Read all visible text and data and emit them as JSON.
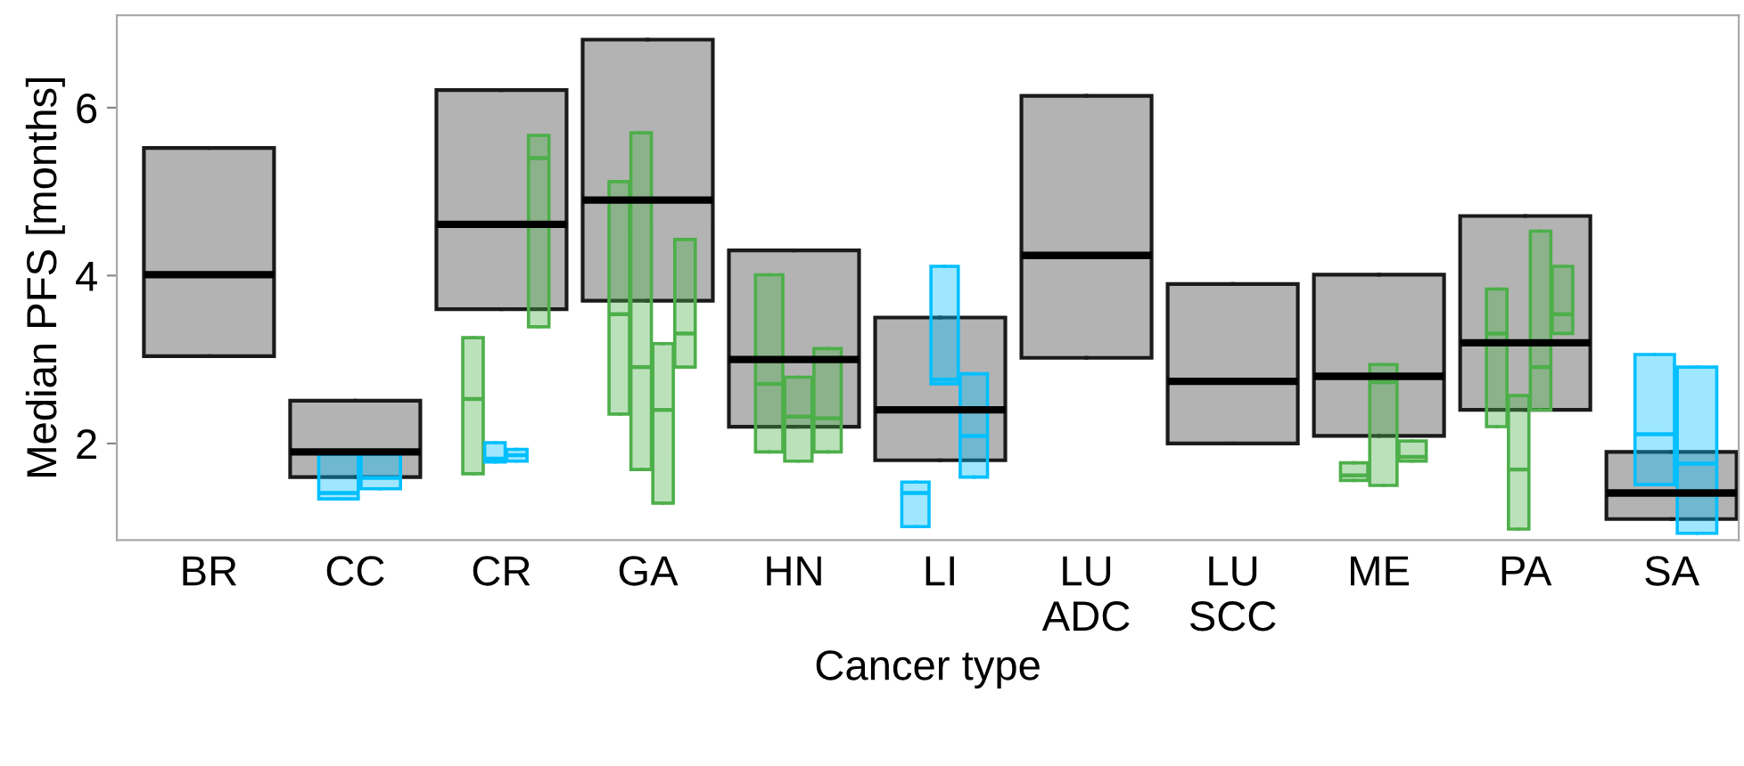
{
  "chart_data": {
    "type": "box",
    "xlabel": "Cancer type",
    "ylabel": "Median PFS [months]",
    "categories": [
      "BR",
      "CC",
      "CR",
      "GA",
      "HN",
      "LI",
      "LU\nADC",
      "LU\nSCC",
      "ME",
      "PA",
      "SA"
    ],
    "ylim": [
      0.85,
      7.1
    ],
    "yticks": [
      2,
      4,
      6
    ],
    "grid": false,
    "legend": false,
    "series": [
      {
        "color": "#b3b3b3",
        "boxes": [
          {
            "low": 3.04,
            "q1": 3.04,
            "median": 4.01,
            "q3": 5.52,
            "high": 5.52
          },
          {
            "low": 1.6,
            "q1": 1.6,
            "median": 1.9,
            "q3": 2.51,
            "high": 2.51
          },
          {
            "low": 3.6,
            "q1": 3.6,
            "median": 4.61,
            "q3": 6.21,
            "high": 6.21
          },
          {
            "low": 3.7,
            "q1": 3.7,
            "median": 4.9,
            "q3": 6.81,
            "high": 6.81
          },
          {
            "low": 2.2,
            "q1": 2.2,
            "median": 3.0,
            "q3": 4.3,
            "high": 4.3
          },
          {
            "low": 1.8,
            "q1": 1.8,
            "median": 2.4,
            "q3": 3.5,
            "high": 3.5
          },
          {
            "low": 3.02,
            "q1": 3.02,
            "median": 4.24,
            "q3": 6.14,
            "high": 6.14
          },
          {
            "low": 2.0,
            "q1": 2.0,
            "median": 2.74,
            "q3": 3.9,
            "high": 3.9
          },
          {
            "low": 2.09,
            "q1": 2.09,
            "median": 2.8,
            "q3": 4.01,
            "high": 4.01
          },
          {
            "low": 2.4,
            "q1": 2.4,
            "median": 3.2,
            "q3": 4.71,
            "high": 4.71
          },
          {
            "low": 1.1,
            "q1": 1.1,
            "median": 1.41,
            "q3": 1.9,
            "high": 1.9
          }
        ]
      },
      {
        "color": "#4daf4a",
        "boxes": [
          null,
          null,
          {
            "low": 1.64,
            "q1": 1.64,
            "median": 2.53,
            "q3": 3.26,
            "high": 3.26
          },
          {
            "low": 2.35,
            "q1": 2.35,
            "median": 3.54,
            "q3": 5.12,
            "high": 5.12
          },
          {
            "low": 1.9,
            "q1": 1.9,
            "median": 2.71,
            "q3": 4.01,
            "high": 4.01
          },
          null,
          null,
          null,
          {
            "low": 1.56,
            "q1": 1.56,
            "median": 1.62,
            "q3": 1.77,
            "high": 1.77
          },
          {
            "low": 2.2,
            "q1": 2.2,
            "median": 3.31,
            "q3": 3.84,
            "high": 3.84
          },
          null
        ]
      },
      {
        "color": "#00bfff",
        "boxes": [
          null,
          {
            "low": 1.34,
            "q1": 1.34,
            "median": 1.41,
            "q3": 1.87,
            "high": 1.87
          },
          {
            "low": 1.78,
            "q1": 1.78,
            "median": 1.82,
            "q3": 2.01,
            "high": 2.01
          },
          null,
          null,
          {
            "low": 1.01,
            "q1": 1.01,
            "median": 1.41,
            "q3": 1.54,
            "high": 1.54
          },
          null,
          null,
          null,
          null,
          {
            "low": 1.51,
            "q1": 1.51,
            "median": 2.11,
            "q3": 3.06,
            "high": 3.06
          }
        ]
      },
      {
        "color": "#00bfff",
        "boxes": [
          null,
          {
            "low": 1.46,
            "q1": 1.46,
            "median": 1.59,
            "q3": 1.87,
            "high": 1.87
          },
          {
            "low": 1.79,
            "q1": 1.79,
            "median": 1.86,
            "q3": 1.93,
            "high": 1.93
          },
          null,
          null,
          {
            "low": 2.71,
            "q1": 2.71,
            "median": 2.76,
            "q3": 4.11,
            "high": 4.11
          },
          null,
          null,
          null,
          null,
          {
            "low": 0.93,
            "q1": 0.93,
            "median": 1.76,
            "q3": 2.91,
            "high": 2.91
          }
        ]
      },
      {
        "color": "#4daf4a",
        "boxes": [
          null,
          null,
          {
            "low": 3.39,
            "q1": 3.39,
            "median": 5.4,
            "q3": 5.67,
            "high": 5.67
          },
          {
            "low": 1.69,
            "q1": 1.69,
            "median": 2.91,
            "q3": 5.7,
            "high": 5.7
          },
          {
            "low": 1.79,
            "q1": 1.79,
            "median": 2.32,
            "q3": 2.79,
            "high": 2.79
          },
          null,
          null,
          null,
          {
            "low": 1.5,
            "q1": 1.5,
            "median": 2.73,
            "q3": 2.94,
            "high": 2.94
          },
          {
            "low": 0.98,
            "q1": 0.98,
            "median": 1.69,
            "q3": 2.57,
            "high": 2.57
          },
          null
        ]
      },
      {
        "color": "#4daf4a",
        "boxes": [
          null,
          null,
          null,
          {
            "low": 1.29,
            "q1": 1.29,
            "median": 2.4,
            "q3": 3.19,
            "high": 3.19
          },
          {
            "low": 1.9,
            "q1": 1.9,
            "median": 2.3,
            "q3": 3.13,
            "high": 3.13
          },
          null,
          null,
          null,
          {
            "low": 1.79,
            "q1": 1.79,
            "median": 1.84,
            "q3": 2.03,
            "high": 2.03
          },
          {
            "low": 2.4,
            "q1": 2.4,
            "median": 2.91,
            "q3": 4.53,
            "high": 4.53
          },
          null
        ]
      },
      {
        "color": "#4daf4a",
        "boxes": [
          null,
          null,
          null,
          {
            "low": 2.91,
            "q1": 2.91,
            "median": 3.31,
            "q3": 4.43,
            "high": 4.43
          },
          null,
          null,
          null,
          null,
          null,
          {
            "low": 3.31,
            "q1": 3.31,
            "median": 3.54,
            "q3": 4.11,
            "high": 4.11
          },
          null
        ]
      },
      {
        "color": "#00bfff",
        "boxes": [
          null,
          null,
          null,
          null,
          null,
          {
            "low": 1.6,
            "q1": 1.6,
            "median": 2.09,
            "q3": 2.83,
            "high": 2.83
          },
          null,
          null,
          null,
          null,
          null
        ]
      }
    ]
  }
}
